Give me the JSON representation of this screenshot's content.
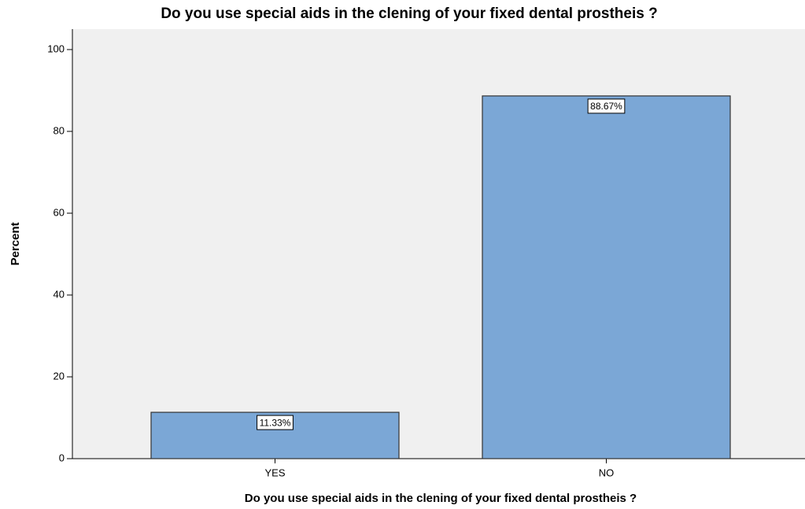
{
  "chart_data": {
    "type": "bar",
    "title": "Do you use special aids in the clening of your fixed dental prostheis ?",
    "x_label": "Do you use special aids in the clening of your fixed dental prostheis ?",
    "y_label": "Percent",
    "categories": [
      "YES",
      "NO"
    ],
    "values": [
      11.33,
      88.67
    ],
    "value_labels": [
      "11.33%",
      "88.67%"
    ],
    "color": "#7ba7d6",
    "ylim": [
      0,
      105
    ],
    "yticks": [
      0,
      20,
      40,
      60,
      80,
      100
    ]
  }
}
